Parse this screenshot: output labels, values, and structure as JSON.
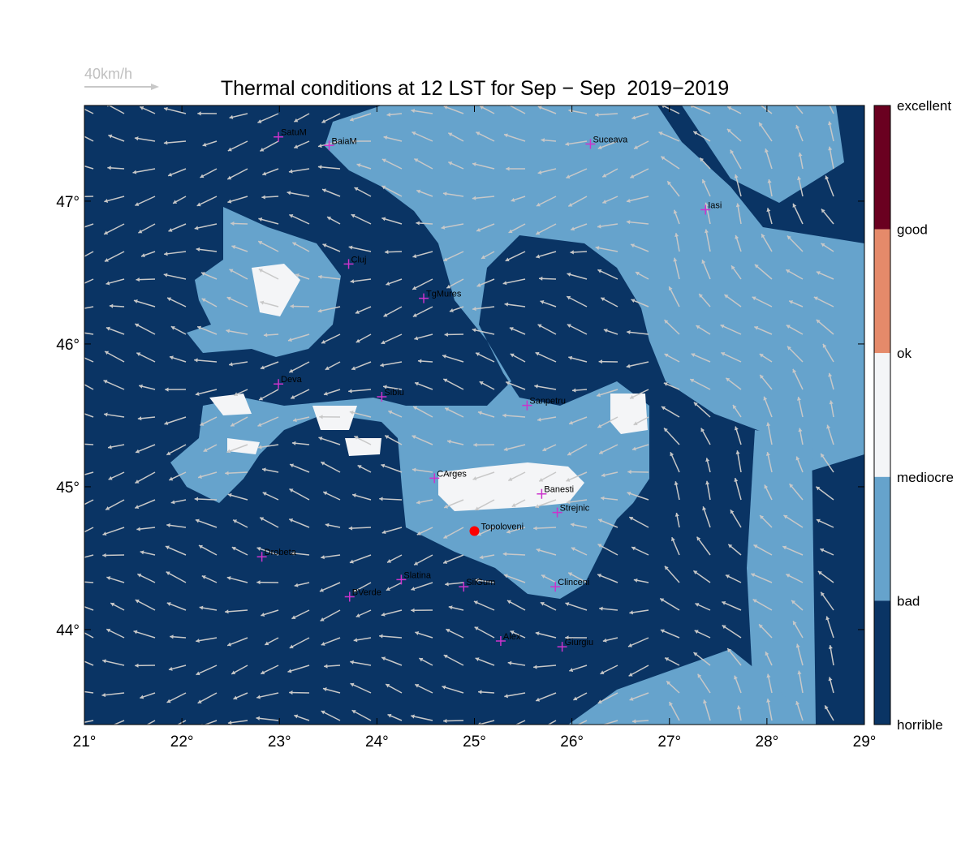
{
  "reference_arrow_label": "40km/h",
  "title": "Thermal conditions at 12 LST for Sep − Sep  2019−2019",
  "map": {
    "xlim": [
      21,
      29
    ],
    "ylim": [
      43.335,
      47.67
    ],
    "xticks": [
      {
        "value": 21,
        "label": "21°"
      },
      {
        "value": 22,
        "label": "22°"
      },
      {
        "value": 23,
        "label": "23°"
      },
      {
        "value": 24,
        "label": "24°"
      },
      {
        "value": 25,
        "label": "25°"
      },
      {
        "value": 26,
        "label": "26°"
      },
      {
        "value": 27,
        "label": "27°"
      },
      {
        "value": 28,
        "label": "28°"
      },
      {
        "value": 29,
        "label": "29°"
      }
    ],
    "yticks": [
      {
        "value": 44,
        "label": "44°"
      },
      {
        "value": 45,
        "label": "45°"
      },
      {
        "value": 46,
        "label": "46°"
      },
      {
        "value": 47,
        "label": "47°"
      }
    ],
    "cities": [
      {
        "name": "SatuM",
        "lon": 22.99,
        "lat": 47.45
      },
      {
        "name": "BaiaM",
        "lon": 23.51,
        "lat": 47.39
      },
      {
        "name": "Suceava",
        "lon": 26.19,
        "lat": 47.4
      },
      {
        "name": "Iasi",
        "lon": 27.37,
        "lat": 46.94
      },
      {
        "name": "Cluj",
        "lon": 23.71,
        "lat": 46.56
      },
      {
        "name": "TgMures",
        "lon": 24.48,
        "lat": 46.32
      },
      {
        "name": "Deva",
        "lon": 22.99,
        "lat": 45.72
      },
      {
        "name": "Sibiu",
        "lon": 24.05,
        "lat": 45.63
      },
      {
        "name": "Sanpetru",
        "lon": 25.54,
        "lat": 45.57
      },
      {
        "name": "CArges",
        "lon": 24.59,
        "lat": 45.06
      },
      {
        "name": "Banesti",
        "lon": 25.69,
        "lat": 44.95
      },
      {
        "name": "Strejnic",
        "lon": 25.85,
        "lat": 44.82
      },
      {
        "name": "Drobeta",
        "lon": 22.82,
        "lat": 44.51
      },
      {
        "name": "Slatina",
        "lon": 24.25,
        "lat": 44.35
      },
      {
        "name": "SilGum",
        "lon": 24.89,
        "lat": 44.3
      },
      {
        "name": "BVerde",
        "lon": 23.72,
        "lat": 44.23
      },
      {
        "name": "Clinceni",
        "lon": 25.83,
        "lat": 44.3
      },
      {
        "name": "Alex",
        "lon": 25.27,
        "lat": 43.92
      },
      {
        "name": "Giurgiu",
        "lon": 25.9,
        "lat": 43.88
      }
    ],
    "highlight": {
      "name": "Topoloveni",
      "lon": 25.0,
      "lat": 44.69,
      "color": "#ff0000"
    }
  },
  "colorbar": {
    "labels": [
      "excellent",
      "good",
      "ok",
      "mediocre",
      "bad",
      "horrible"
    ],
    "colors": [
      "#6a0020",
      "#e58a6a",
      "#f4f5f7",
      "#66a3cc",
      "#0a3464"
    ]
  }
}
